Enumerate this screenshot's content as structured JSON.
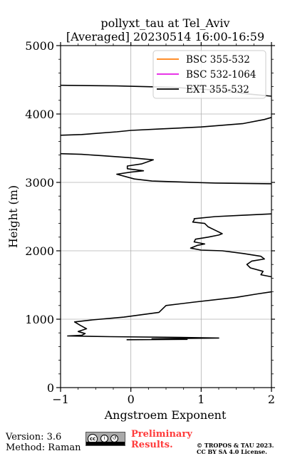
{
  "chart_data": {
    "type": "line",
    "title_line1": "pollyxt_tau at Tel_Aviv",
    "title_line2": "[Averaged] 20230514 16:00-16:59",
    "xlabel": "Angstroem Exponent",
    "ylabel": "Height (m)",
    "xlim": [
      -1,
      2
    ],
    "ylim": [
      0,
      5000
    ],
    "xticks": [
      -1,
      0,
      1,
      2
    ],
    "xtick_labels": [
      "−1",
      "0",
      "1",
      "2"
    ],
    "yticks": [
      0,
      1000,
      2000,
      3000,
      4000,
      5000
    ],
    "ytick_labels": [
      "0",
      "1000",
      "2000",
      "3000",
      "4000",
      "5000"
    ],
    "grid": true,
    "legend_position": "top-right",
    "series": [
      {
        "name": "BSC 355-532",
        "color": "#ff7f0e",
        "points": []
      },
      {
        "name": "BSC 532-1064",
        "color": "#e41ae4",
        "points": []
      },
      {
        "name": "EXT 355-532",
        "color": "#000000",
        "points": [
          [
            -0.06,
            700
          ],
          [
            0.8,
            705
          ],
          [
            0.3,
            712
          ],
          [
            1.25,
            725
          ],
          [
            0.6,
            735
          ],
          [
            -0.3,
            745
          ],
          [
            -0.9,
            755
          ],
          [
            -0.7,
            765
          ],
          [
            -0.65,
            790
          ],
          [
            -0.75,
            820
          ],
          [
            -0.63,
            860
          ],
          [
            -0.72,
            910
          ],
          [
            -0.8,
            960
          ],
          [
            -0.55,
            990
          ],
          [
            -0.1,
            1030
          ],
          [
            0.4,
            1100
          ],
          [
            0.45,
            1150
          ],
          [
            0.5,
            1200
          ],
          [
            0.9,
            1250
          ],
          [
            1.5,
            1320
          ],
          [
            1.8,
            1370
          ],
          [
            2.0,
            1400
          ]
        ]
      },
      {
        "name": "EXT 355-532",
        "color": "#000000",
        "points": [
          [
            2.0,
            1620
          ],
          [
            1.85,
            1650
          ],
          [
            1.88,
            1700
          ],
          [
            1.7,
            1750
          ],
          [
            1.65,
            1800
          ],
          [
            1.72,
            1850
          ],
          [
            1.9,
            1880
          ],
          [
            1.85,
            1920
          ],
          [
            1.6,
            1960
          ],
          [
            1.3,
            2000
          ],
          [
            1.0,
            2010
          ],
          [
            0.85,
            2040
          ],
          [
            0.95,
            2080
          ],
          [
            1.05,
            2100
          ],
          [
            0.9,
            2130
          ],
          [
            0.92,
            2170
          ],
          [
            1.1,
            2200
          ],
          [
            1.25,
            2230
          ],
          [
            1.3,
            2250
          ],
          [
            1.2,
            2300
          ],
          [
            1.1,
            2350
          ],
          [
            1.05,
            2400
          ],
          [
            0.88,
            2420
          ],
          [
            0.9,
            2450
          ],
          [
            0.9,
            2470
          ],
          [
            1.2,
            2500
          ],
          [
            1.6,
            2520
          ],
          [
            2.0,
            2540
          ]
        ]
      },
      {
        "name": "EXT 355-532",
        "color": "#000000",
        "points": [
          [
            2.0,
            2980
          ],
          [
            1.2,
            2990
          ],
          [
            0.3,
            3020
          ],
          [
            0.05,
            3050
          ],
          [
            -0.2,
            3120
          ],
          [
            0.0,
            3150
          ],
          [
            0.18,
            3170
          ],
          [
            -0.05,
            3200
          ],
          [
            -0.05,
            3240
          ],
          [
            0.15,
            3270
          ],
          [
            0.32,
            3330
          ],
          [
            0.0,
            3360
          ],
          [
            -0.4,
            3390
          ],
          [
            -0.7,
            3410
          ],
          [
            -1.0,
            3420
          ]
        ]
      },
      {
        "name": "EXT 355-532",
        "color": "#000000",
        "points": [
          [
            -1.0,
            3690
          ],
          [
            -0.7,
            3700
          ],
          [
            -0.2,
            3740
          ],
          [
            0.0,
            3760
          ],
          [
            0.4,
            3780
          ],
          [
            1.0,
            3810
          ],
          [
            1.6,
            3860
          ],
          [
            1.9,
            3920
          ],
          [
            2.0,
            3950
          ]
        ]
      },
      {
        "name": "EXT 355-532",
        "color": "#000000",
        "points": [
          [
            2.0,
            4260
          ],
          [
            1.7,
            4290
          ],
          [
            1.2,
            4350
          ],
          [
            0.6,
            4390
          ],
          [
            -0.2,
            4410
          ],
          [
            -1.0,
            4420
          ]
        ]
      }
    ]
  },
  "footer": {
    "version": "Version: 3.6",
    "method": "Method: Raman",
    "preliminary_line1": "Preliminary",
    "preliminary_line2": "Results.",
    "copyright_line1": "© TROPOS & TAU 2023.",
    "copyright_line2": "CC BY SA 4.0 License.",
    "license_icon": "cc-by-sa-badge-icon"
  }
}
